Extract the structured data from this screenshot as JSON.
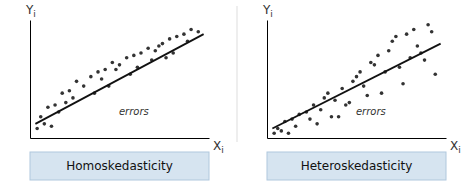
{
  "chart_data": [
    {
      "type": "scatter",
      "title": "Homoskedasticity",
      "x_label": "X",
      "x_label_subscript": "i",
      "y_label": "Y",
      "y_label_subscript": "i",
      "annotations": [
        "errors"
      ],
      "xlim": [
        0,
        1
      ],
      "ylim": [
        0,
        1
      ],
      "xticks": [],
      "yticks": [],
      "tick_labels": false,
      "grid": false,
      "series": [
        {
          "type": "scatter",
          "color": "#333333",
          "x": [
            0.06,
            0.1,
            0.08,
            0.14,
            0.18,
            0.16,
            0.22,
            0.26,
            0.3,
            0.34,
            0.38,
            0.36,
            0.42,
            0.46,
            0.5,
            0.54,
            0.58,
            0.56,
            0.62,
            0.66,
            0.7,
            0.74,
            0.78,
            0.76,
            0.82,
            0.86,
            0.9,
            0.12,
            0.24,
            0.44,
            0.6,
            0.8,
            0.94,
            0.2,
            0.4,
            0.68,
            0.88,
            0.04,
            0.48,
            0.72
          ],
          "values": [
            0.18,
            0.26,
            0.12,
            0.28,
            0.38,
            0.22,
            0.4,
            0.48,
            0.44,
            0.52,
            0.56,
            0.38,
            0.58,
            0.64,
            0.62,
            0.68,
            0.7,
            0.54,
            0.72,
            0.76,
            0.74,
            0.8,
            0.84,
            0.68,
            0.86,
            0.88,
            0.92,
            0.1,
            0.34,
            0.44,
            0.6,
            0.72,
            0.9,
            0.3,
            0.5,
            0.66,
            0.82,
            0.08,
            0.58,
            0.78
          ]
        },
        {
          "type": "line",
          "color": "#111111",
          "x": [
            0.03,
            0.97
          ],
          "values": [
            0.12,
            0.88
          ]
        }
      ]
    },
    {
      "type": "scatter",
      "title": "Heteroskedasticity",
      "x_label": "X",
      "x_label_subscript": "i",
      "y_label": "Y",
      "y_label_subscript": "i",
      "annotations": [
        "errors"
      ],
      "xlim": [
        0,
        1
      ],
      "ylim": [
        0,
        1
      ],
      "xticks": [],
      "yticks": [],
      "tick_labels": false,
      "grid": false,
      "series": [
        {
          "type": "scatter",
          "color": "#333333",
          "x": [
            0.06,
            0.1,
            0.08,
            0.14,
            0.18,
            0.16,
            0.22,
            0.26,
            0.3,
            0.34,
            0.38,
            0.36,
            0.42,
            0.46,
            0.5,
            0.54,
            0.58,
            0.56,
            0.62,
            0.66,
            0.7,
            0.74,
            0.78,
            0.76,
            0.82,
            0.86,
            0.9,
            0.94,
            0.12,
            0.24,
            0.44,
            0.6,
            0.8,
            0.04,
            0.48,
            0.72,
            0.64,
            0.52,
            0.84,
            0.4,
            0.68,
            0.88,
            0.92,
            0.28,
            0.32
          ],
          "values": [
            0.08,
            0.14,
            0.06,
            0.16,
            0.2,
            0.1,
            0.22,
            0.28,
            0.24,
            0.38,
            0.32,
            0.18,
            0.42,
            0.3,
            0.52,
            0.44,
            0.64,
            0.36,
            0.7,
            0.56,
            0.82,
            0.6,
            0.88,
            0.46,
            0.92,
            0.72,
            0.96,
            0.54,
            0.04,
            0.16,
            0.28,
            0.62,
            0.68,
            0.04,
            0.48,
            0.86,
            0.38,
            0.56,
            0.78,
            0.18,
            0.74,
            0.66,
            0.9,
            0.12,
            0.34
          ]
        },
        {
          "type": "line",
          "color": "#111111",
          "x": [
            0.03,
            0.97
          ],
          "values": [
            0.08,
            0.8
          ]
        }
      ]
    }
  ]
}
